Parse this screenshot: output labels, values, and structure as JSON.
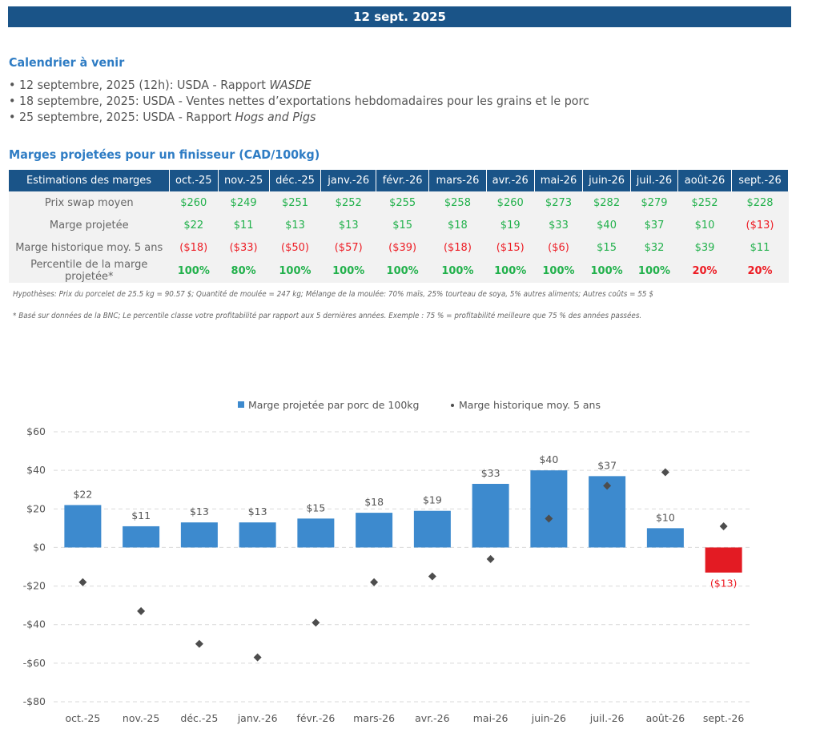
{
  "header": {
    "date": "12 sept. 2025"
  },
  "calendar": {
    "title": "Calendrier à venir",
    "items": [
      {
        "text": "12 septembre, 2025 (12h): USDA - Rapport ",
        "italic": "WASDE"
      },
      {
        "text": "18 septembre, 2025: USDA - Ventes nettes d’exportations hebdomadaires pour les grains et le porc",
        "italic": ""
      },
      {
        "text": "25 septembre, 2025: USDA - Rapport ",
        "italic": "Hogs and Pigs"
      }
    ]
  },
  "margins_section": {
    "title": "Marges projetées pour un finisseur (CAD/100kg)",
    "table": {
      "corner_label": "Estimations des marges",
      "columns": [
        "oct.-25",
        "nov.-25",
        "déc.-25",
        "janv.-26",
        "févr.-26",
        "mars-26",
        "avr.-26",
        "mai-26",
        "juin-26",
        "juil.-26",
        "août-26",
        "sept.-26"
      ],
      "rows": [
        {
          "label": "Prix swap moyen",
          "values": [
            "$260",
            "$249",
            "$251",
            "$252",
            "$255",
            "$258",
            "$260",
            "$273",
            "$282",
            "$279",
            "$252",
            "$228"
          ],
          "status": [
            "pos",
            "pos",
            "pos",
            "pos",
            "pos",
            "pos",
            "pos",
            "pos",
            "pos",
            "pos",
            "pos",
            "pos"
          ]
        },
        {
          "label": "Marge projetée",
          "values": [
            "$22",
            "$11",
            "$13",
            "$13",
            "$15",
            "$18",
            "$19",
            "$33",
            "$40",
            "$37",
            "$10",
            "($13)"
          ],
          "status": [
            "pos",
            "pos",
            "pos",
            "pos",
            "pos",
            "pos",
            "pos",
            "pos",
            "pos",
            "pos",
            "pos",
            "neg"
          ]
        },
        {
          "label": "Marge historique moy. 5 ans",
          "values": [
            "($18)",
            "($33)",
            "($50)",
            "($57)",
            "($39)",
            "($18)",
            "($15)",
            "($6)",
            "$15",
            "$32",
            "$39",
            "$11"
          ],
          "status": [
            "neg",
            "neg",
            "neg",
            "neg",
            "neg",
            "neg",
            "neg",
            "neg",
            "pos",
            "pos",
            "pos",
            "pos"
          ]
        },
        {
          "label": "Percentile de la marge projetée*",
          "values": [
            "100%",
            "80%",
            "100%",
            "100%",
            "100%",
            "100%",
            "100%",
            "100%",
            "100%",
            "100%",
            "20%",
            "20%"
          ],
          "status": [
            "pos",
            "pos",
            "pos",
            "pos",
            "pos",
            "pos",
            "pos",
            "pos",
            "pos",
            "pos",
            "neg",
            "neg"
          ]
        }
      ]
    },
    "assumptions": "Hypothèses: Prix du porcelet de 25.5 kg = 90.57 $; Quantité de moulée = 247 kg; Mélange de la moulée: 70% maïs, 25% tourteau de soya, 5% autres aliments; Autres coûts = 55 $",
    "footnote": "* Basé sur données de la BNC; Le percentile classe votre profitabilité par rapport aux 5 dernières années. Exemple : 75 % = profitabilité meilleure que 75 % des années passées."
  },
  "colors": {
    "header_bg": "#1a5488",
    "title": "#2e7cc4",
    "positive": "#22b14c",
    "negative": "#ed1c24",
    "bar": "#3d8ace",
    "bar_negative": "#e31b23",
    "marker": "#4d4d4d"
  },
  "chart_data": {
    "type": "bar",
    "title": "",
    "xlabel": "",
    "ylabel": "",
    "ylim": [
      -80,
      60
    ],
    "yticks": [
      60,
      40,
      20,
      0,
      -20,
      -40,
      -60,
      -80
    ],
    "ytick_labels": [
      "$60",
      "$40",
      "$20",
      "$0",
      "-$20",
      "-$40",
      "-$60",
      "-$80"
    ],
    "grid": true,
    "legend_position": "top-center",
    "categories": [
      "oct.-25",
      "nov.-25",
      "déc.-25",
      "janv.-26",
      "févr.-26",
      "mars-26",
      "avr.-26",
      "mai-26",
      "juin-26",
      "juil.-26",
      "août-26",
      "sept.-26"
    ],
    "series": [
      {
        "name": "Marge projetée par porc de 100kg",
        "kind": "bar",
        "values": [
          22,
          11,
          13,
          13,
          15,
          18,
          19,
          33,
          40,
          37,
          10,
          -13
        ],
        "labels": [
          "$22",
          "$11",
          "$13",
          "$13",
          "$15",
          "$18",
          "$19",
          "$33",
          "$40",
          "$37",
          "$10",
          "($13)"
        ]
      },
      {
        "name": "Marge historique moy. 5 ans",
        "kind": "scatter",
        "marker": "diamond",
        "values": [
          -18,
          -33,
          -50,
          -57,
          -39,
          -18,
          -15,
          -6,
          15,
          32,
          39,
          11
        ]
      }
    ]
  }
}
